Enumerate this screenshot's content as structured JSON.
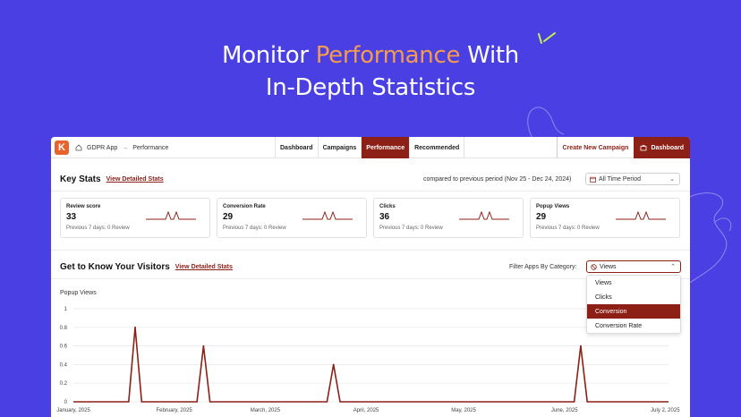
{
  "hero": {
    "line1_start": "Monitor ",
    "line1_accent": "Performance",
    "line1_end": " With",
    "line2": "In-Depth Statistics"
  },
  "colors": {
    "background": "#4a3fe3",
    "accent": "#f59a4f",
    "brand": "#8c1f16",
    "sparkle": "#c7f34a"
  },
  "app": {
    "logo_letter": "K",
    "breadcrumb": {
      "home_icon": "home-icon",
      "app": "GDPR App",
      "arrow": "→",
      "page": "Performance"
    },
    "tabs": [
      {
        "label": "Dashboard",
        "active": false
      },
      {
        "label": "Campaigns",
        "active": false
      },
      {
        "label": "Performance",
        "active": true
      },
      {
        "label": "Recommended",
        "active": false
      }
    ],
    "create_button": "Create New Campaign",
    "dashboard_button": "Dashboard"
  },
  "key_stats": {
    "title": "Key Stats",
    "link": "View Detailed Stats",
    "compare_text": "compared to previous period (Nov 25 - Dec 24, 2024)",
    "period_value": "All Time Period",
    "cards": [
      {
        "label": "Review score",
        "value": "33",
        "sub": "Previous 7 days: 0 Review"
      },
      {
        "label": "Conversion Rate",
        "value": "29",
        "sub": "Previous 7 days: 0 Review"
      },
      {
        "label": "Clicks",
        "value": "36",
        "sub": "Previous 7 days: 0 Review"
      },
      {
        "label": "Popup Views",
        "value": "29",
        "sub": "Previous 7 days: 0 Review"
      }
    ]
  },
  "visitors": {
    "title": "Get to Know Your Visitors",
    "link": "View Detailed Stats",
    "filter_label": "Filter Apps By Category:",
    "filter_value": "Views",
    "options": [
      {
        "label": "Views",
        "selected": false
      },
      {
        "label": "Clicks",
        "selected": false
      },
      {
        "label": "Conversion",
        "selected": true
      },
      {
        "label": "Conversion Rate",
        "selected": false
      }
    ]
  },
  "chart_data": {
    "type": "line",
    "title": "Popup Views",
    "x_tick_labels": [
      "January, 2025",
      "February, 2025",
      "March, 2025",
      "April, 2025",
      "May, 2025",
      "June, 2025",
      "July 2, 2025"
    ],
    "y_ticks": [
      "0",
      "0.2",
      "0.4",
      "0.6",
      "0.8",
      "1"
    ],
    "ylim": [
      0,
      1
    ],
    "points_day_index": [
      0,
      17,
      19,
      21,
      38,
      40,
      42,
      78,
      80,
      82,
      154,
      156,
      158,
      183
    ],
    "values": [
      0,
      0,
      0.8,
      0,
      0,
      0.6,
      0,
      0,
      0.4,
      0,
      0,
      0.6,
      0,
      0
    ],
    "x_range_days": [
      0,
      183
    ],
    "x_tick_days": [
      0,
      31,
      59,
      90,
      120,
      151,
      182
    ],
    "grid": true,
    "color": "#8c1f16"
  }
}
